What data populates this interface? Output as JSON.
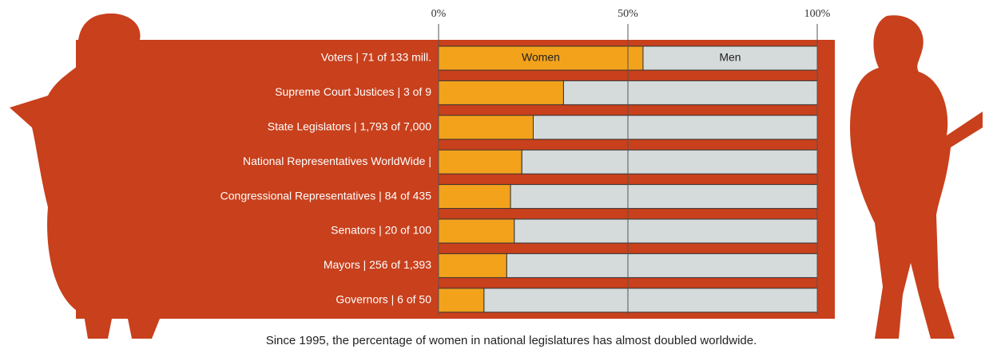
{
  "chart_data": {
    "type": "stacked-bar-horizontal",
    "categories": [
      "Voters | 71 of 133 mill.",
      "Supreme Court Justices | 3 of 9",
      "State Legislators | 1,793 of 7,000",
      "National Representatives WorldWide |",
      "Congressional Representatives | 84 of 435",
      "Senators | 20 of 100",
      "Mayors | 256 of 1,393",
      "Governors | 6 of 50"
    ],
    "series": [
      {
        "name": "Women",
        "color": "#f3a21c",
        "values": [
          54,
          33,
          25,
          22,
          19,
          20,
          18,
          12
        ]
      },
      {
        "name": "Men",
        "color": "#d5dadb",
        "values": [
          46,
          67,
          75,
          78,
          81,
          80,
          82,
          88
        ]
      }
    ],
    "xlim": [
      0,
      100
    ],
    "xticks": [
      {
        "value": 0,
        "label": "0%"
      },
      {
        "value": 50,
        "label": "50%"
      },
      {
        "value": 100,
        "label": "100%"
      }
    ],
    "grid": true,
    "note": "Since 1995, the percentage of women in national legislatures has almost doubled worldwide."
  }
}
